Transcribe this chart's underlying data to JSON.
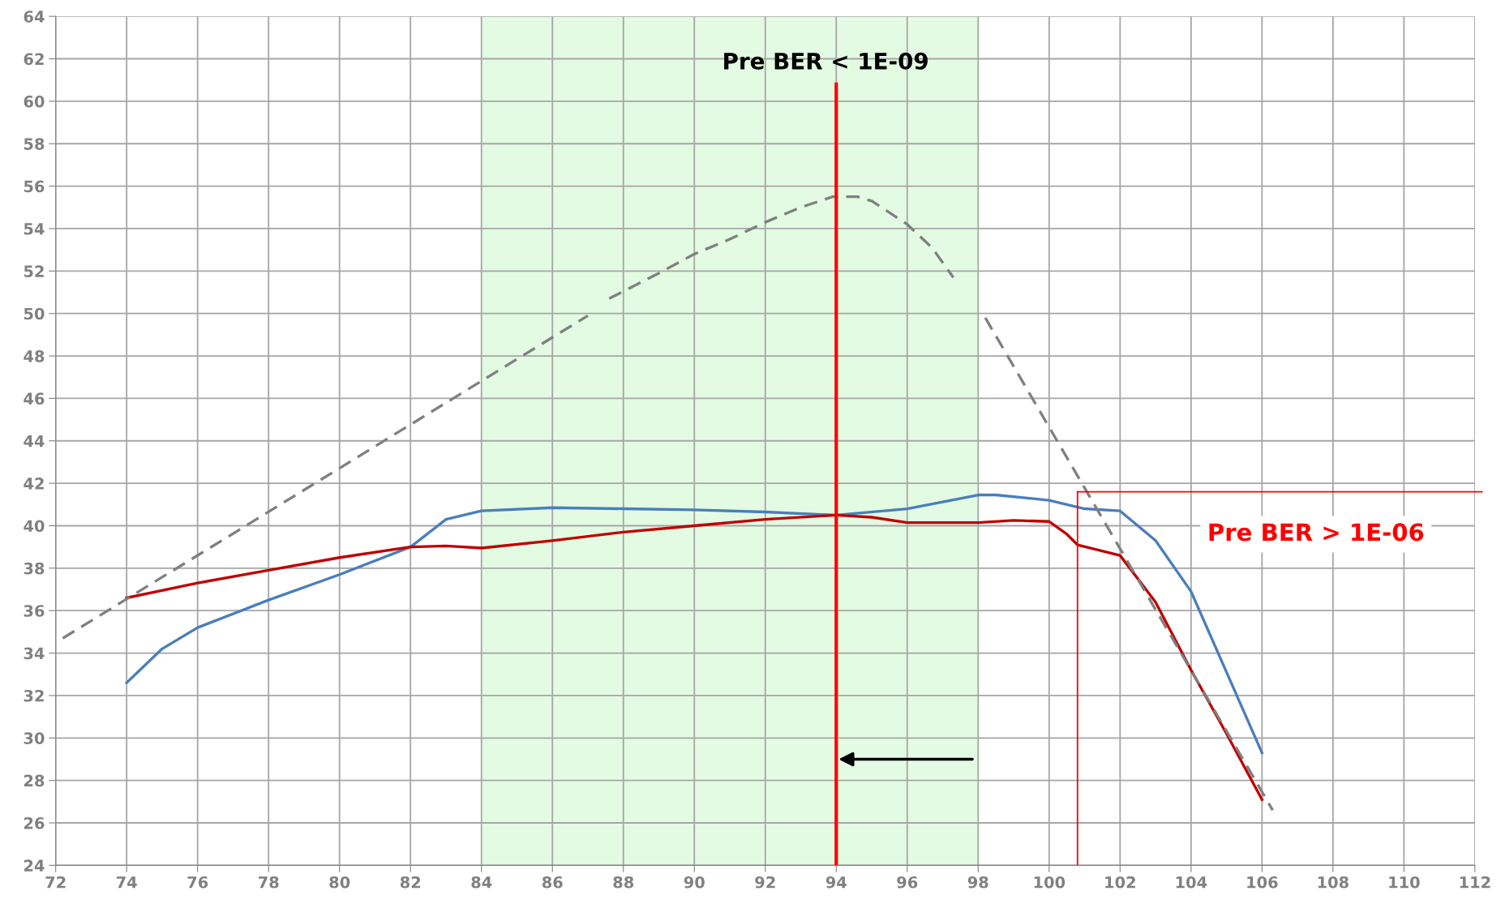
{
  "chart_data": {
    "type": "line",
    "xlim": [
      72,
      112
    ],
    "ylim": [
      24,
      64
    ],
    "xticks": [
      72,
      74,
      76,
      78,
      80,
      82,
      84,
      86,
      88,
      90,
      92,
      94,
      96,
      98,
      100,
      102,
      104,
      106,
      108,
      110,
      112
    ],
    "yticks": [
      24,
      26,
      28,
      30,
      32,
      34,
      36,
      38,
      40,
      42,
      44,
      46,
      48,
      50,
      52,
      54,
      56,
      58,
      60,
      62,
      64
    ],
    "grid": true,
    "marker": "none",
    "series": [
      {
        "color": "#4a7ebb",
        "line_style": "solid",
        "x": [
          74,
          75,
          76,
          78,
          80,
          82,
          83,
          84,
          86,
          88,
          90,
          92,
          94,
          96,
          98,
          98.5,
          100,
          101,
          102,
          103,
          104,
          106
        ],
        "values": [
          32.6,
          34.2,
          35.2,
          36.5,
          37.7,
          39.0,
          40.3,
          40.7,
          40.85,
          40.8,
          40.75,
          40.65,
          40.5,
          40.8,
          41.45,
          41.45,
          41.2,
          40.8,
          40.7,
          39.3,
          36.9,
          29.3
        ]
      },
      {
        "color": "#c00000",
        "line_style": "solid",
        "x": [
          74,
          76,
          78,
          80,
          82,
          83,
          84,
          86,
          88,
          90,
          92,
          94,
          95,
          96,
          98,
          99,
          100,
          100.5,
          100.8,
          102,
          103,
          104,
          105,
          106
        ],
        "values": [
          36.6,
          37.3,
          37.9,
          38.5,
          39.0,
          39.05,
          38.95,
          39.3,
          39.7,
          40.0,
          40.3,
          40.5,
          40.4,
          40.15,
          40.15,
          40.25,
          40.2,
          39.6,
          39.1,
          38.6,
          36.4,
          33.2,
          30.2,
          27.1
        ]
      },
      {
        "color": "#808080",
        "line_style": "dashed",
        "x": [
          72.2,
          87.0,
          87.3,
          87.6,
          89,
          90,
          91,
          92,
          93,
          93.9,
          94.6,
          95,
          96,
          96.7,
          97.3,
          97.7,
          98.2,
          106.3
        ],
        "values": [
          34.7,
          49.9,
          null,
          50.7,
          51.9,
          52.8,
          53.5,
          54.3,
          55.0,
          55.5,
          55.5,
          55.3,
          54.2,
          53.1,
          51.7,
          null,
          49.8,
          26.6
        ]
      }
    ],
    "bands": [
      {
        "axis": "x",
        "from": 84,
        "to": 98,
        "color": "#e2fbe2"
      }
    ],
    "ref_lines": [
      {
        "axis": "x",
        "value": 94,
        "label": "Pre BER < 1E-09",
        "color": "#ff0000"
      },
      {
        "axis": "x",
        "value": 100.8,
        "color": "#ff0000"
      },
      {
        "axis": "y",
        "value": 41.6,
        "color": "#ff0000"
      }
    ],
    "annotations": [
      "Pre BER > 1E-06"
    ]
  }
}
